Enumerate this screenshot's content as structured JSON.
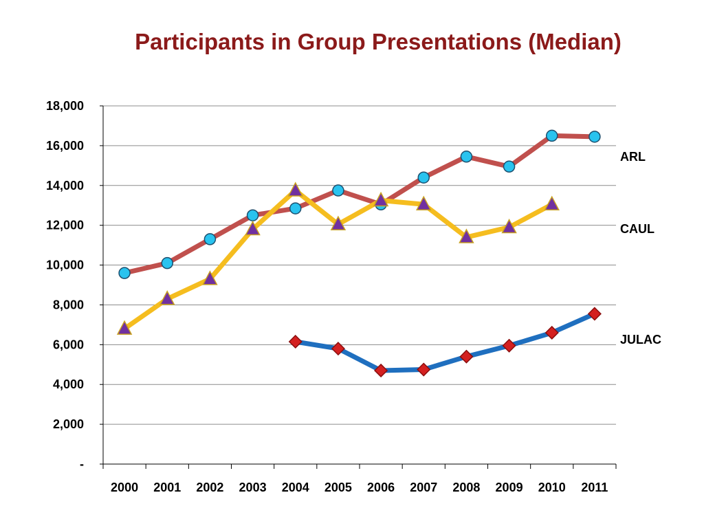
{
  "chart_data": {
    "type": "line",
    "title": "Participants in Group Presentations (Median)",
    "categories": [
      "2000",
      "2001",
      "2002",
      "2003",
      "2004",
      "2005",
      "2006",
      "2007",
      "2008",
      "2009",
      "2010",
      "2011"
    ],
    "ylim": [
      0,
      18000
    ],
    "yticks": [
      0,
      2000,
      4000,
      6000,
      8000,
      10000,
      12000,
      14000,
      16000,
      18000
    ],
    "ytick_labels": [
      "-",
      "2,000",
      "4,000",
      "6,000",
      "8,000",
      "10,000",
      "12,000",
      "14,000",
      "16,000",
      "18,000"
    ],
    "grid": true,
    "legend": "series labels at right end",
    "series": [
      {
        "name": "ARL",
        "color": "#c0504d",
        "marker": "circle",
        "marker_color": "#29c3ef",
        "values": [
          9600,
          10100,
          11300,
          12500,
          12850,
          13750,
          13050,
          14400,
          15450,
          14950,
          16500,
          16450
        ]
      },
      {
        "name": "CAUL",
        "color": "#f5bd1f",
        "marker": "triangle",
        "marker_color": "#7030a0",
        "values": [
          6800,
          8300,
          9300,
          11800,
          13750,
          12050,
          13250,
          13050,
          11400,
          11900,
          13050,
          null
        ]
      },
      {
        "name": "JULAC",
        "color": "#1f6fbf",
        "marker": "diamond",
        "marker_color": "#d42020",
        "values": [
          null,
          null,
          null,
          null,
          6150,
          5800,
          4700,
          4750,
          5400,
          5950,
          6600,
          7550
        ]
      }
    ]
  }
}
